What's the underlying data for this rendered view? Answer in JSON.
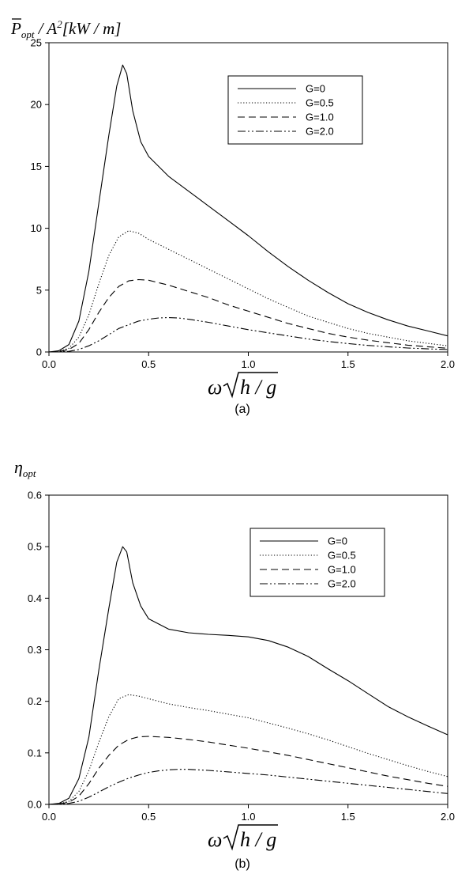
{
  "figure": {
    "captions": [
      "(a)",
      "(b)"
    ]
  },
  "chart_data": [
    {
      "type": "line",
      "panel": "a",
      "caption": "(a)",
      "ylabel": "P̄opt / A²[kW / m]",
      "xlabel": "ω√(h/g)",
      "xlim": [
        0,
        2.0
      ],
      "ylim": [
        0,
        25
      ],
      "xticks": [
        "0.0",
        "0.5",
        "1.0",
        "1.5",
        "2.0"
      ],
      "yticks": [
        "0",
        "5",
        "10",
        "15",
        "20",
        "25"
      ],
      "legend_position": "top-right",
      "grid": false,
      "series": [
        {
          "name": "G=0",
          "dash": "solid",
          "x": [
            0.0,
            0.05,
            0.1,
            0.15,
            0.2,
            0.25,
            0.3,
            0.34,
            0.37,
            0.39,
            0.42,
            0.46,
            0.5,
            0.6,
            0.7,
            0.8,
            0.9,
            1.0,
            1.1,
            1.2,
            1.3,
            1.4,
            1.5,
            1.6,
            1.7,
            1.8,
            1.9,
            2.0
          ],
          "y": [
            0.0,
            0.1,
            0.6,
            2.5,
            6.5,
            12.0,
            17.5,
            21.5,
            23.2,
            22.5,
            19.5,
            17.0,
            15.8,
            14.2,
            13.0,
            11.8,
            10.6,
            9.4,
            8.1,
            6.9,
            5.8,
            4.8,
            3.9,
            3.2,
            2.6,
            2.1,
            1.7,
            1.3
          ]
        },
        {
          "name": "G=0.5",
          "dash": "dotted",
          "x": [
            0.0,
            0.05,
            0.1,
            0.15,
            0.2,
            0.25,
            0.3,
            0.35,
            0.4,
            0.45,
            0.5,
            0.6,
            0.7,
            0.8,
            0.9,
            1.0,
            1.1,
            1.2,
            1.3,
            1.4,
            1.5,
            1.6,
            1.7,
            1.8,
            1.9,
            2.0
          ],
          "y": [
            0.0,
            0.05,
            0.3,
            1.2,
            3.0,
            5.5,
            7.8,
            9.3,
            9.8,
            9.6,
            9.1,
            8.3,
            7.5,
            6.7,
            5.9,
            5.1,
            4.3,
            3.6,
            2.9,
            2.4,
            1.9,
            1.5,
            1.2,
            0.9,
            0.7,
            0.5
          ]
        },
        {
          "name": "G=1.0",
          "dash": "dashed",
          "x": [
            0.0,
            0.05,
            0.1,
            0.15,
            0.2,
            0.25,
            0.3,
            0.35,
            0.4,
            0.45,
            0.5,
            0.6,
            0.7,
            0.8,
            0.9,
            1.0,
            1.1,
            1.2,
            1.3,
            1.4,
            1.5,
            1.6,
            1.7,
            1.8,
            1.9,
            2.0
          ],
          "y": [
            0.0,
            0.03,
            0.2,
            0.7,
            1.8,
            3.2,
            4.4,
            5.3,
            5.75,
            5.85,
            5.8,
            5.4,
            4.9,
            4.4,
            3.8,
            3.3,
            2.8,
            2.3,
            1.9,
            1.5,
            1.2,
            0.95,
            0.75,
            0.55,
            0.42,
            0.3
          ]
        },
        {
          "name": "G=2.0",
          "dash": "dashdotdot",
          "x": [
            0.0,
            0.05,
            0.1,
            0.15,
            0.2,
            0.25,
            0.3,
            0.35,
            0.4,
            0.45,
            0.5,
            0.55,
            0.6,
            0.65,
            0.7,
            0.8,
            0.9,
            1.0,
            1.1,
            1.2,
            1.3,
            1.4,
            1.5,
            1.6,
            1.7,
            1.8,
            1.9,
            2.0
          ],
          "y": [
            0.0,
            0.01,
            0.05,
            0.2,
            0.5,
            0.9,
            1.4,
            1.9,
            2.2,
            2.5,
            2.65,
            2.75,
            2.78,
            2.75,
            2.65,
            2.4,
            2.1,
            1.8,
            1.55,
            1.3,
            1.05,
            0.85,
            0.68,
            0.53,
            0.42,
            0.32,
            0.25,
            0.2
          ]
        }
      ]
    },
    {
      "type": "line",
      "panel": "b",
      "caption": "(b)",
      "ylabel": "ηopt",
      "xlabel": "ω√(h/g)",
      "xlim": [
        0,
        2.0
      ],
      "ylim": [
        0,
        0.6
      ],
      "xticks": [
        "0.0",
        "0.5",
        "1.0",
        "1.5",
        "2.0"
      ],
      "yticks": [
        "0.0",
        "0.1",
        "0.2",
        "0.3",
        "0.4",
        "0.5",
        "0.6"
      ],
      "legend_position": "top-right",
      "grid": false,
      "series": [
        {
          "name": "G=0",
          "dash": "solid",
          "x": [
            0.0,
            0.05,
            0.1,
            0.15,
            0.2,
            0.25,
            0.3,
            0.34,
            0.37,
            0.39,
            0.42,
            0.46,
            0.5,
            0.6,
            0.7,
            0.8,
            0.9,
            1.0,
            1.1,
            1.2,
            1.3,
            1.4,
            1.5,
            1.6,
            1.7,
            1.8,
            1.9,
            2.0
          ],
          "y": [
            0.0,
            0.002,
            0.012,
            0.05,
            0.13,
            0.26,
            0.38,
            0.47,
            0.5,
            0.49,
            0.43,
            0.385,
            0.36,
            0.34,
            0.333,
            0.33,
            0.328,
            0.325,
            0.318,
            0.305,
            0.287,
            0.263,
            0.24,
            0.215,
            0.19,
            0.17,
            0.152,
            0.135
          ]
        },
        {
          "name": "G=0.5",
          "dash": "dotted",
          "x": [
            0.0,
            0.05,
            0.1,
            0.15,
            0.2,
            0.25,
            0.3,
            0.35,
            0.4,
            0.45,
            0.5,
            0.6,
            0.7,
            0.8,
            0.9,
            1.0,
            1.1,
            1.2,
            1.3,
            1.4,
            1.5,
            1.6,
            1.7,
            1.8,
            1.9,
            2.0
          ],
          "y": [
            0.0,
            0.001,
            0.006,
            0.025,
            0.065,
            0.12,
            0.17,
            0.205,
            0.213,
            0.21,
            0.205,
            0.195,
            0.188,
            0.182,
            0.175,
            0.168,
            0.158,
            0.148,
            0.137,
            0.125,
            0.112,
            0.099,
            0.087,
            0.075,
            0.064,
            0.054
          ]
        },
        {
          "name": "G=1.0",
          "dash": "dashed",
          "x": [
            0.0,
            0.05,
            0.1,
            0.15,
            0.2,
            0.25,
            0.3,
            0.35,
            0.4,
            0.45,
            0.5,
            0.6,
            0.7,
            0.8,
            0.9,
            1.0,
            1.1,
            1.2,
            1.3,
            1.4,
            1.5,
            1.6,
            1.7,
            1.8,
            1.9,
            2.0
          ],
          "y": [
            0.0,
            0.001,
            0.004,
            0.016,
            0.04,
            0.07,
            0.095,
            0.115,
            0.126,
            0.131,
            0.132,
            0.13,
            0.126,
            0.121,
            0.115,
            0.109,
            0.102,
            0.095,
            0.087,
            0.079,
            0.071,
            0.063,
            0.055,
            0.048,
            0.041,
            0.035
          ]
        },
        {
          "name": "G=2.0",
          "dash": "dashdotdot",
          "x": [
            0.0,
            0.05,
            0.1,
            0.15,
            0.2,
            0.25,
            0.3,
            0.35,
            0.4,
            0.45,
            0.5,
            0.55,
            0.6,
            0.65,
            0.7,
            0.8,
            0.9,
            1.0,
            1.1,
            1.2,
            1.3,
            1.4,
            1.5,
            1.6,
            1.7,
            1.8,
            1.9,
            2.0
          ],
          "y": [
            0.0,
            0.0005,
            0.002,
            0.006,
            0.014,
            0.024,
            0.034,
            0.043,
            0.051,
            0.057,
            0.062,
            0.065,
            0.067,
            0.068,
            0.068,
            0.066,
            0.063,
            0.06,
            0.057,
            0.053,
            0.049,
            0.045,
            0.041,
            0.037,
            0.033,
            0.029,
            0.025,
            0.021
          ]
        }
      ]
    }
  ]
}
